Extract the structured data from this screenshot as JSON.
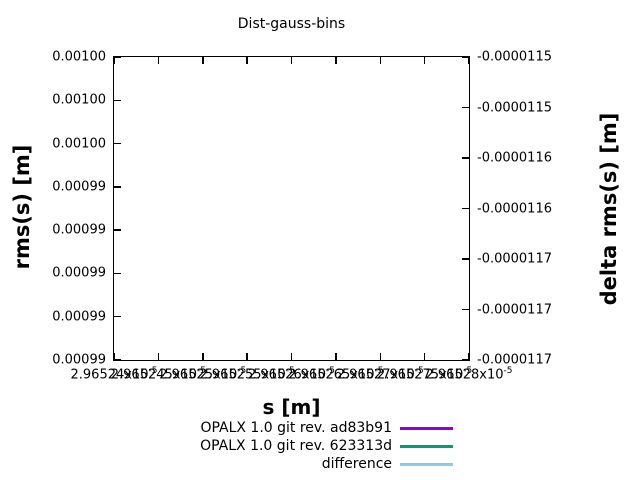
{
  "title": "Dist-gauss-bins",
  "chart_data": {
    "type": "line",
    "title": "Dist-gauss-bins",
    "xlabel": "s [m]",
    "ylabel": "rms(s) [m]",
    "y2label": "delta rms(s) [m]",
    "grid": false,
    "plot_area_empty": true,
    "x_axis": {
      "tick_labels": [
        "2.96524",
        "2.965245",
        "2.96525",
        "2.965255",
        "2.96526",
        "2.965265",
        "2.96527",
        "2.965275",
        "2.96528"
      ],
      "tick_suffix_base": "x10",
      "tick_suffix_exponent": "-5",
      "note": "labels overlap each other heavily in the rendered image"
    },
    "y_axis_left": {
      "tick_labels": [
        "0.00100",
        "0.00100",
        "0.00100",
        "0.00099",
        "0.00099",
        "0.00099",
        "0.00099",
        "0.00099"
      ]
    },
    "y_axis_right": {
      "tick_labels": [
        "-0.0000115",
        "-0.0000115",
        "-0.0000116",
        "-0.0000116",
        "-0.0000117",
        "-0.0000117",
        "-0.0000117"
      ]
    },
    "legend_position": "below-chart-right",
    "series": [
      {
        "name": "OPALX 1.0 git rev. ad83b91",
        "color": "#9400d3",
        "values": []
      },
      {
        "name": "OPALX 1.0 git rev. 623313d",
        "color": "#009e73",
        "values": []
      },
      {
        "name": "difference",
        "color": "#87ceeb",
        "values": []
      }
    ]
  }
}
